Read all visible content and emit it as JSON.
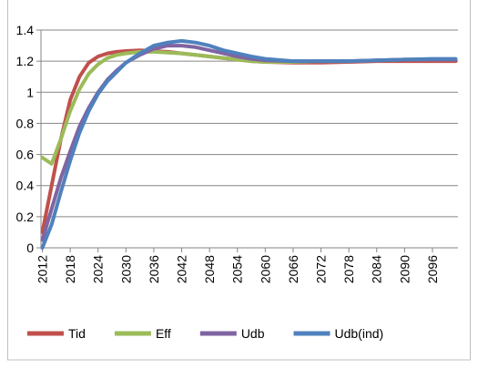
{
  "chart_data": {
    "type": "line",
    "x": [
      2012,
      2014,
      2016,
      2018,
      2020,
      2022,
      2024,
      2026,
      2028,
      2030,
      2033,
      2036,
      2039,
      2042,
      2045,
      2048,
      2051,
      2054,
      2057,
      2060,
      2066,
      2072,
      2078,
      2084,
      2090,
      2096,
      2101
    ],
    "series": [
      {
        "name": "Tid",
        "color": "#c0504d",
        "values": [
          0.1,
          0.4,
          0.7,
          0.95,
          1.1,
          1.19,
          1.23,
          1.25,
          1.26,
          1.265,
          1.27,
          1.265,
          1.26,
          1.25,
          1.24,
          1.23,
          1.22,
          1.21,
          1.2,
          1.195,
          1.19,
          1.19,
          1.195,
          1.2,
          1.2,
          1.2,
          1.2
        ]
      },
      {
        "name": "Eff",
        "color": "#9bbb59",
        "values": [
          0.58,
          0.54,
          0.7,
          0.88,
          1.02,
          1.12,
          1.18,
          1.22,
          1.24,
          1.25,
          1.26,
          1.26,
          1.255,
          1.25,
          1.24,
          1.23,
          1.22,
          1.21,
          1.2,
          1.195,
          1.195,
          1.2,
          1.2,
          1.205,
          1.21,
          1.21,
          1.21
        ]
      },
      {
        "name": "Udb",
        "color": "#8064a2",
        "values": [
          0.05,
          0.25,
          0.45,
          0.62,
          0.78,
          0.9,
          1.0,
          1.08,
          1.14,
          1.19,
          1.24,
          1.28,
          1.3,
          1.3,
          1.29,
          1.27,
          1.25,
          1.23,
          1.215,
          1.205,
          1.2,
          1.2,
          1.2,
          1.205,
          1.21,
          1.21,
          1.21
        ]
      },
      {
        "name": "Udb(ind)",
        "color": "#4f81bd",
        "values": [
          0.0,
          0.15,
          0.36,
          0.56,
          0.74,
          0.88,
          0.99,
          1.07,
          1.13,
          1.19,
          1.25,
          1.3,
          1.32,
          1.33,
          1.32,
          1.3,
          1.27,
          1.25,
          1.23,
          1.215,
          1.2,
          1.2,
          1.2,
          1.205,
          1.21,
          1.215,
          1.215
        ]
      }
    ],
    "xlim": [
      2011.7,
      2101.5
    ],
    "xticks": [
      2012,
      2018,
      2024,
      2030,
      2036,
      2042,
      2048,
      2054,
      2060,
      2066,
      2072,
      2078,
      2084,
      2090,
      2096
    ],
    "ylim": [
      0,
      1.4
    ],
    "yticks": [
      0,
      0.2,
      0.4,
      0.6,
      0.8,
      1,
      1.2,
      1.4
    ],
    "grid": true,
    "legend": "bottom"
  }
}
